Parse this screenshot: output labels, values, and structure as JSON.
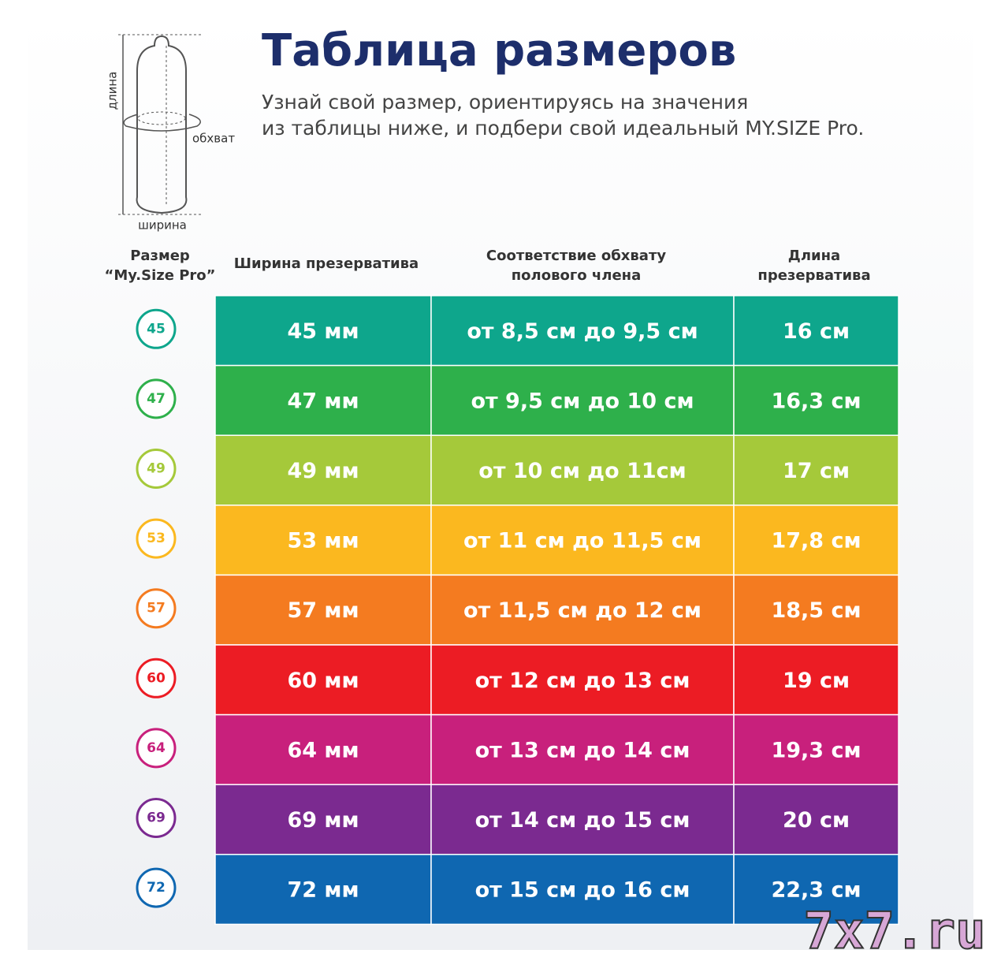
{
  "header": {
    "title": "Таблица размеров",
    "subtitle": [
      "Узнай свой размер, ориентируясь на значения",
      "из таблицы ниже, и подбери свой идеальный MY.SIZE Pro."
    ]
  },
  "diagram": {
    "length": "длина",
    "girth": "обхват",
    "width": "ширина"
  },
  "table": {
    "headers": [
      [
        "Размер",
        "“My.Size Pro”"
      ],
      [
        "Ширина презерватива"
      ],
      [
        "Соответствие обхвату",
        "полового члена"
      ],
      [
        "Длина",
        "презерватива"
      ]
    ],
    "rows": [
      {
        "size": "45",
        "width": "45 мм",
        "girth": "от 8,5 см до 9,5 см",
        "length": "16 см",
        "color": "#0ea68c"
      },
      {
        "size": "47",
        "width": "47 мм",
        "girth": "от 9,5 см до 10 см",
        "length": "16,3 см",
        "color": "#2eb04b"
      },
      {
        "size": "49",
        "width": "49 мм",
        "girth": "от 10 см до 11см",
        "length": "17 см",
        "color": "#a5c93a"
      },
      {
        "size": "53",
        "width": "53 мм",
        "girth": "от 11 см до 11,5 см",
        "length": "17,8 см",
        "color": "#fbb81f"
      },
      {
        "size": "57",
        "width": "57 мм",
        "girth": "от 11,5 см до 12 см",
        "length": "18,5 см",
        "color": "#f47b20"
      },
      {
        "size": "60",
        "width": "60 мм",
        "girth": "от 12 см до 13 см",
        "length": "19 см",
        "color": "#ec1c24"
      },
      {
        "size": "64",
        "width": "64 мм",
        "girth": "от 13 см до 14 см",
        "length": "19,3 см",
        "color": "#c8207c"
      },
      {
        "size": "69",
        "width": "69 мм",
        "girth": "от 14 см до 15 см",
        "length": "20 см",
        "color": "#7b2a90"
      },
      {
        "size": "72",
        "width": "72 мм",
        "girth": "от 15 см до 16 см",
        "length": "22,3 см",
        "color": "#0f67b1"
      }
    ]
  },
  "watermark": "7x7.ru"
}
